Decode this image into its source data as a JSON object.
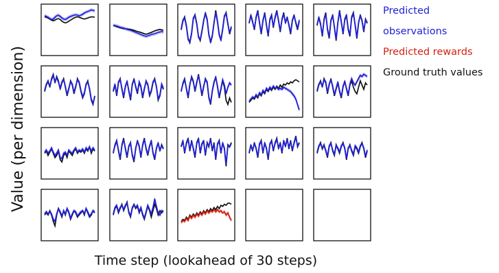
{
  "chart_data": {
    "type": "line",
    "xlabel": "Time step (lookahead of 30 steps)",
    "ylabel": "Value (per dimension)",
    "x_points_per_panel": 30,
    "layout": {
      "rows": 4,
      "cols": 5
    },
    "legend_position": "top-right",
    "legend": [
      {
        "lines": [
          "Predicted",
          "observations"
        ],
        "color": "#2020d8"
      },
      {
        "lines": [
          "Predicted rewards"
        ],
        "color": "#d42010"
      },
      {
        "lines": [
          "Ground truth values"
        ],
        "color": "#111111"
      }
    ],
    "colors": {
      "observation": "#2020d8",
      "reward": "#d42010",
      "truth": "#111111"
    },
    "panels": [
      {
        "kind": "observation",
        "truth": [
          0.6,
          0.58,
          0.55,
          0.5,
          0.45,
          0.42,
          0.45,
          0.5,
          0.52,
          0.48,
          0.4,
          0.35,
          0.32,
          0.35,
          0.4,
          0.45,
          0.5,
          0.55,
          0.58,
          0.6,
          0.58,
          0.55,
          0.52,
          0.5,
          0.52,
          0.55,
          0.58,
          0.6,
          0.6,
          0.58
        ],
        "pred": [
          0.65,
          0.62,
          0.58,
          0.52,
          0.48,
          0.5,
          0.58,
          0.65,
          0.68,
          0.62,
          0.55,
          0.5,
          0.48,
          0.52,
          0.58,
          0.62,
          0.65,
          0.68,
          0.7,
          0.68,
          0.65,
          0.68,
          0.72,
          0.78,
          0.82,
          0.85,
          0.88,
          0.92,
          0.9,
          0.88
        ]
      },
      {
        "kind": "observation",
        "truth": [
          0.2,
          0.18,
          0.15,
          0.12,
          0.1,
          0.08,
          0.06,
          0.05,
          0.04,
          0.03,
          0.02,
          0.0,
          -0.02,
          -0.05,
          -0.08,
          -0.1,
          -0.12,
          -0.15,
          -0.18,
          -0.2,
          -0.18,
          -0.15,
          -0.12,
          -0.08,
          -0.05,
          -0.02,
          0.0,
          0.02,
          0.0,
          -0.02
        ],
        "pred": [
          0.22,
          0.2,
          0.18,
          0.15,
          0.12,
          0.1,
          0.08,
          0.05,
          0.02,
          0.0,
          -0.02,
          -0.05,
          -0.08,
          -0.12,
          -0.15,
          -0.18,
          -0.22,
          -0.25,
          -0.28,
          -0.3,
          -0.28,
          -0.25,
          -0.22,
          -0.2,
          -0.18,
          -0.15,
          -0.12,
          -0.1,
          -0.08,
          -0.1
        ]
      },
      {
        "kind": "observation",
        "truth": [
          0.0,
          0.4,
          0.6,
          0.2,
          -0.4,
          -0.6,
          -0.2,
          0.5,
          0.7,
          0.3,
          -0.3,
          -0.5,
          -0.1,
          0.4,
          0.8,
          0.5,
          -0.2,
          -0.6,
          -0.3,
          0.3,
          0.9,
          0.4,
          -0.2,
          -0.5,
          0.0,
          0.6,
          0.8,
          0.3,
          -0.2,
          0.1
        ],
        "pred": [
          0.05,
          0.45,
          0.55,
          0.15,
          -0.45,
          -0.55,
          -0.15,
          0.55,
          0.65,
          0.25,
          -0.35,
          -0.45,
          -0.05,
          0.45,
          0.75,
          0.45,
          -0.25,
          -0.55,
          -0.25,
          0.35,
          0.8,
          0.35,
          -0.25,
          -0.45,
          0.05,
          0.65,
          0.75,
          0.25,
          -0.15,
          0.15
        ]
      },
      {
        "kind": "observation",
        "truth": [
          0.3,
          0.7,
          0.4,
          0.0,
          0.6,
          0.9,
          0.3,
          -0.2,
          0.4,
          0.8,
          0.2,
          -0.3,
          0.5,
          0.7,
          0.1,
          0.6,
          0.9,
          0.4,
          -0.1,
          0.5,
          0.8,
          0.3,
          0.6,
          0.2,
          -0.2,
          0.4,
          0.7,
          0.3,
          0.0,
          0.4
        ],
        "pred": [
          0.35,
          0.65,
          0.35,
          0.05,
          0.55,
          0.85,
          0.35,
          -0.15,
          0.45,
          0.75,
          0.25,
          -0.25,
          0.45,
          0.65,
          0.15,
          0.55,
          0.85,
          0.45,
          -0.05,
          0.45,
          0.75,
          0.35,
          0.55,
          0.25,
          -0.15,
          0.45,
          0.65,
          0.35,
          0.05,
          0.45
        ]
      },
      {
        "kind": "observation",
        "truth": [
          0.2,
          0.6,
          0.3,
          -0.3,
          0.5,
          0.8,
          0.0,
          -0.4,
          0.4,
          0.7,
          0.1,
          -0.5,
          0.3,
          0.9,
          0.4,
          -0.2,
          0.5,
          0.7,
          0.0,
          -0.3,
          0.6,
          0.8,
          0.2,
          -0.4,
          0.3,
          0.7,
          0.4,
          -0.1,
          0.5,
          0.3
        ],
        "pred": [
          0.25,
          0.55,
          0.25,
          -0.25,
          0.45,
          0.75,
          0.05,
          -0.35,
          0.45,
          0.65,
          0.15,
          -0.45,
          0.35,
          0.85,
          0.35,
          -0.15,
          0.45,
          0.65,
          0.05,
          -0.25,
          0.55,
          0.75,
          0.25,
          -0.35,
          0.35,
          0.65,
          0.45,
          -0.05,
          0.45,
          0.35
        ]
      },
      {
        "kind": "observation",
        "truth": [
          0.0,
          0.3,
          0.5,
          0.2,
          0.6,
          0.8,
          0.4,
          0.7,
          0.5,
          0.1,
          0.4,
          0.6,
          0.2,
          -0.2,
          0.1,
          0.5,
          0.3,
          -0.1,
          0.2,
          0.6,
          0.4,
          0.0,
          -0.3,
          -0.1,
          0.3,
          0.5,
          0.1,
          -0.4,
          -0.6,
          -0.2
        ],
        "pred": [
          0.05,
          0.35,
          0.45,
          0.25,
          0.55,
          0.75,
          0.45,
          0.65,
          0.45,
          0.15,
          0.45,
          0.55,
          0.25,
          -0.15,
          0.15,
          0.45,
          0.35,
          -0.05,
          0.25,
          0.55,
          0.45,
          0.05,
          -0.25,
          -0.05,
          0.35,
          0.45,
          0.15,
          -0.35,
          -0.55,
          -0.25
        ]
      },
      {
        "kind": "observation",
        "truth": [
          0.0,
          0.3,
          -0.2,
          0.4,
          0.6,
          0.1,
          -0.3,
          0.2,
          0.5,
          0.0,
          -0.4,
          0.3,
          0.6,
          0.2,
          -0.1,
          0.4,
          0.2,
          -0.3,
          0.1,
          0.5,
          0.3,
          -0.2,
          0.0,
          0.4,
          0.6,
          0.2,
          -0.4,
          -0.2,
          0.3,
          0.1
        ],
        "pred": [
          0.05,
          0.35,
          -0.15,
          0.45,
          0.55,
          0.15,
          -0.25,
          0.25,
          0.45,
          0.05,
          -0.35,
          0.35,
          0.55,
          0.25,
          -0.05,
          0.45,
          0.25,
          -0.25,
          0.15,
          0.45,
          0.35,
          -0.15,
          0.05,
          0.45,
          0.55,
          0.25,
          -0.35,
          -0.15,
          0.35,
          0.15
        ]
      },
      {
        "kind": "observation",
        "truth": [
          0.0,
          0.4,
          0.6,
          0.1,
          -0.3,
          0.3,
          0.7,
          0.5,
          0.0,
          0.4,
          0.8,
          0.3,
          -0.2,
          0.2,
          0.6,
          0.4,
          -0.3,
          -0.6,
          0.0,
          0.4,
          0.7,
          0.2,
          -0.3,
          0.1,
          0.5,
          0.2,
          -0.4,
          -0.6,
          -0.3,
          -0.5
        ],
        "pred": [
          0.05,
          0.35,
          0.55,
          0.15,
          -0.25,
          0.35,
          0.65,
          0.45,
          0.05,
          0.45,
          0.75,
          0.35,
          -0.15,
          0.25,
          0.55,
          0.45,
          -0.25,
          -0.55,
          0.05,
          0.45,
          0.65,
          0.25,
          -0.25,
          0.15,
          0.55,
          0.3,
          -0.1,
          0.2,
          0.4,
          0.3
        ]
      },
      {
        "kind": "observation",
        "truth": [
          -0.5,
          -0.4,
          -0.3,
          -0.35,
          -0.2,
          -0.3,
          -0.1,
          -0.2,
          0.0,
          -0.1,
          0.1,
          0.0,
          0.15,
          0.05,
          0.2,
          0.1,
          0.25,
          0.15,
          0.3,
          0.2,
          0.35,
          0.3,
          0.4,
          0.35,
          0.45,
          0.4,
          0.5,
          0.55,
          0.5,
          0.45
        ],
        "pred": [
          -0.45,
          -0.35,
          -0.25,
          -0.3,
          -0.15,
          -0.25,
          -0.05,
          -0.15,
          0.05,
          -0.05,
          0.15,
          0.05,
          0.2,
          0.1,
          0.25,
          0.15,
          0.2,
          0.1,
          0.15,
          0.1,
          0.2,
          0.15,
          0.1,
          0.05,
          0.0,
          -0.1,
          -0.2,
          -0.35,
          -0.6,
          -0.85
        ]
      },
      {
        "kind": "observation",
        "truth": [
          0.0,
          0.3,
          0.5,
          0.2,
          0.6,
          0.4,
          -0.1,
          0.3,
          0.6,
          0.2,
          -0.2,
          0.1,
          0.4,
          0.0,
          -0.3,
          0.2,
          0.5,
          0.1,
          -0.2,
          0.3,
          0.5,
          0.2,
          0.0,
          -0.1,
          0.2,
          0.5,
          0.3,
          0.1,
          0.4,
          0.3
        ],
        "pred": [
          0.05,
          0.35,
          0.45,
          0.25,
          0.55,
          0.45,
          -0.05,
          0.35,
          0.55,
          0.25,
          -0.15,
          0.15,
          0.45,
          0.05,
          -0.25,
          0.25,
          0.45,
          0.15,
          -0.15,
          0.35,
          0.6,
          0.4,
          0.3,
          0.45,
          0.6,
          0.75,
          0.7,
          0.8,
          0.75,
          0.7
        ]
      },
      {
        "kind": "observation",
        "truth": [
          0.0,
          0.1,
          -0.1,
          0.05,
          0.2,
          0.0,
          -0.2,
          -0.1,
          0.1,
          -0.3,
          -0.4,
          -0.1,
          0.0,
          -0.2,
          0.1,
          0.0,
          -0.1,
          0.1,
          0.2,
          0.0,
          0.1,
          0.05,
          0.15,
          0.0,
          0.2,
          0.1,
          0.3,
          0.0,
          0.2,
          0.1
        ],
        "pred": [
          0.05,
          0.15,
          0.0,
          0.1,
          0.25,
          0.05,
          -0.1,
          0.0,
          0.15,
          -0.2,
          -0.25,
          0.0,
          0.05,
          -0.1,
          0.15,
          0.05,
          0.0,
          0.15,
          0.25,
          0.05,
          0.15,
          0.1,
          0.2,
          0.05,
          0.25,
          0.15,
          0.3,
          0.1,
          0.25,
          0.15
        ]
      },
      {
        "kind": "observation",
        "truth": [
          0.0,
          0.4,
          0.6,
          0.1,
          -0.3,
          0.4,
          0.7,
          0.2,
          -0.2,
          0.3,
          0.5,
          -0.1,
          -0.4,
          0.2,
          0.6,
          0.3,
          -0.2,
          0.4,
          0.7,
          0.2,
          -0.1,
          0.3,
          0.6,
          0.0,
          -0.3,
          0.2,
          0.5,
          0.1,
          0.4,
          0.2
        ],
        "pred": [
          0.05,
          0.35,
          0.55,
          0.15,
          -0.25,
          0.35,
          0.65,
          0.25,
          -0.15,
          0.35,
          0.45,
          -0.05,
          -0.35,
          0.25,
          0.55,
          0.35,
          -0.15,
          0.35,
          0.65,
          0.25,
          -0.05,
          0.35,
          0.55,
          0.05,
          -0.25,
          0.25,
          0.45,
          0.15,
          0.35,
          0.25
        ]
      },
      {
        "kind": "observation",
        "truth": [
          0.3,
          0.6,
          0.0,
          0.5,
          0.7,
          0.1,
          0.6,
          0.2,
          -0.2,
          0.5,
          0.7,
          0.0,
          0.4,
          0.6,
          -0.1,
          0.5,
          0.3,
          0.7,
          0.1,
          0.5,
          -0.3,
          0.4,
          0.6,
          0.0,
          0.5,
          0.2,
          -0.6,
          0.4,
          0.3,
          0.5
        ],
        "pred": [
          0.35,
          0.55,
          0.05,
          0.45,
          0.65,
          0.15,
          0.55,
          0.25,
          -0.15,
          0.45,
          0.65,
          0.05,
          0.45,
          0.55,
          -0.05,
          0.45,
          0.35,
          0.65,
          0.15,
          0.45,
          -0.25,
          0.45,
          0.55,
          0.05,
          0.45,
          0.25,
          -0.5,
          0.35,
          0.3,
          0.45
        ]
      },
      {
        "kind": "observation",
        "truth": [
          0.0,
          0.4,
          0.1,
          0.5,
          0.2,
          -0.2,
          0.4,
          0.6,
          0.0,
          0.5,
          0.2,
          -0.3,
          0.4,
          0.6,
          0.1,
          0.5,
          0.7,
          0.2,
          0.5,
          0.0,
          0.6,
          0.3,
          0.7,
          0.2,
          0.6,
          0.1,
          0.5,
          0.8,
          0.3,
          0.5
        ],
        "pred": [
          0.05,
          0.35,
          0.15,
          0.45,
          0.25,
          -0.15,
          0.45,
          0.55,
          0.05,
          0.45,
          0.25,
          -0.25,
          0.45,
          0.55,
          0.15,
          0.45,
          0.65,
          0.25,
          0.45,
          0.05,
          0.55,
          0.35,
          0.65,
          0.25,
          0.55,
          0.15,
          0.45,
          0.75,
          0.35,
          0.45
        ]
      },
      {
        "kind": "observation",
        "truth": [
          0.0,
          0.3,
          0.5,
          0.2,
          0.4,
          0.1,
          -0.2,
          0.3,
          0.5,
          0.1,
          -0.1,
          0.4,
          0.2,
          0.0,
          0.3,
          0.5,
          0.2,
          -0.3,
          0.2,
          0.4,
          0.1,
          -0.1,
          0.3,
          0.2,
          0.0,
          0.3,
          0.5,
          0.2,
          -0.2,
          0.1
        ],
        "pred": [
          0.05,
          0.35,
          0.45,
          0.25,
          0.35,
          0.15,
          -0.15,
          0.35,
          0.45,
          0.15,
          -0.05,
          0.35,
          0.25,
          0.05,
          0.35,
          0.45,
          0.25,
          -0.25,
          0.25,
          0.35,
          0.15,
          -0.05,
          0.35,
          0.25,
          0.05,
          0.35,
          0.45,
          0.25,
          -0.15,
          0.15
        ]
      },
      {
        "kind": "observation",
        "truth": [
          0.0,
          0.1,
          0.0,
          0.2,
          0.0,
          -0.3,
          -0.5,
          0.0,
          0.3,
          0.1,
          -0.1,
          0.2,
          0.0,
          0.3,
          0.1,
          -0.2,
          0.0,
          0.2,
          0.1,
          -0.1,
          0.0,
          0.1,
          0.2,
          0.0,
          0.3,
          0.1,
          -0.1,
          0.0,
          0.2,
          0.1
        ],
        "pred": [
          0.05,
          0.15,
          0.05,
          0.15,
          0.05,
          -0.2,
          -0.3,
          0.05,
          0.3,
          0.15,
          -0.05,
          0.2,
          0.05,
          0.3,
          0.15,
          -0.15,
          0.05,
          0.2,
          0.15,
          -0.05,
          0.05,
          0.15,
          0.2,
          0.05,
          0.3,
          0.15,
          -0.05,
          0.05,
          0.2,
          0.15
        ]
      },
      {
        "kind": "observation",
        "truth": [
          0.0,
          0.3,
          0.4,
          0.1,
          0.3,
          0.5,
          0.2,
          0.4,
          0.6,
          0.1,
          -0.1,
          0.3,
          0.5,
          0.3,
          0.4,
          0.1,
          0.3,
          0.0,
          -0.2,
          0.1,
          0.4,
          0.2,
          -0.1,
          0.2,
          0.5,
          0.3,
          0.0,
          0.2,
          0.1,
          0.2
        ],
        "pred": [
          0.05,
          0.35,
          0.45,
          0.15,
          0.35,
          0.45,
          0.25,
          0.45,
          0.55,
          0.15,
          -0.05,
          0.35,
          0.45,
          0.35,
          0.45,
          0.15,
          0.35,
          0.05,
          -0.15,
          0.15,
          0.45,
          0.25,
          0.05,
          0.35,
          0.75,
          0.4,
          0.1,
          0.0,
          0.2,
          0.15
        ]
      },
      {
        "kind": "reward",
        "truth": [
          -0.3,
          -0.2,
          -0.25,
          -0.1,
          -0.2,
          0.0,
          -0.1,
          0.05,
          -0.05,
          0.1,
          0.0,
          0.15,
          0.05,
          0.2,
          0.1,
          0.25,
          0.15,
          0.3,
          0.2,
          0.35,
          0.25,
          0.4,
          0.3,
          0.45,
          0.4,
          0.5,
          0.45,
          0.55,
          0.55,
          0.5
        ],
        "pred": [
          -0.35,
          -0.25,
          -0.3,
          -0.15,
          -0.25,
          -0.05,
          -0.15,
          0.0,
          -0.1,
          0.05,
          -0.05,
          0.1,
          0.0,
          0.15,
          0.05,
          0.2,
          0.1,
          0.2,
          0.15,
          0.25,
          0.15,
          0.25,
          0.15,
          0.2,
          0.1,
          0.15,
          0.0,
          0.1,
          -0.1,
          -0.25
        ]
      },
      {
        "kind": "empty"
      },
      {
        "kind": "empty"
      }
    ]
  }
}
